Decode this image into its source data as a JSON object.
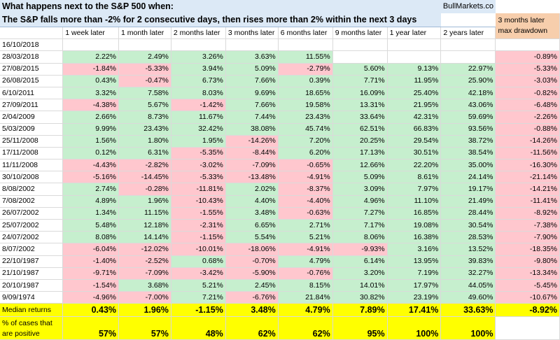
{
  "title_line1": "What happens next to the S&P 500 when:",
  "title_line2": "The S&P falls more than -2% for 2 consecutive days, then rises more than 2% within the next 3 days",
  "brand": "BullMarkets.co",
  "columns": [
    "1 week later",
    "1 month later",
    "2 months later",
    "3 months later",
    "6 months later",
    "9 months later",
    "1 year later",
    "2 years later"
  ],
  "drawdown_header_line1": "3 months later",
  "drawdown_header_line2": "max drawdown",
  "colors": {
    "positive": "#c6efce",
    "negative": "#ffc7ce",
    "highlight": "#ffff00",
    "title_bg": "#dce9f6",
    "drawdown_header_bg": "#f7ceac"
  },
  "rows": [
    {
      "date": "16/10/2018",
      "values": [
        "",
        "",
        "",
        "",
        "",
        "",
        "",
        ""
      ],
      "drawdown": ""
    },
    {
      "date": "28/03/2018",
      "values": [
        "2.22%",
        "2.49%",
        "3.26%",
        "3.63%",
        "11.55%",
        "",
        "",
        ""
      ],
      "drawdown": "-0.89%"
    },
    {
      "date": "27/08/2015",
      "values": [
        "-1.84%",
        "-5.33%",
        "3.94%",
        "5.09%",
        "-2.79%",
        "5.60%",
        "9.13%",
        "22.97%"
      ],
      "drawdown": "-5.33%"
    },
    {
      "date": "26/08/2015",
      "values": [
        "0.43%",
        "-0.47%",
        "6.73%",
        "7.66%",
        "0.39%",
        "7.71%",
        "11.95%",
        "25.90%"
      ],
      "drawdown": "-3.03%"
    },
    {
      "date": "6/10/2011",
      "values": [
        "3.32%",
        "7.58%",
        "8.03%",
        "9.69%",
        "18.65%",
        "16.09%",
        "25.40%",
        "42.18%"
      ],
      "drawdown": "-0.82%"
    },
    {
      "date": "27/09/2011",
      "values": [
        "-4.38%",
        "5.67%",
        "-1.42%",
        "7.66%",
        "19.58%",
        "13.31%",
        "21.95%",
        "43.06%"
      ],
      "drawdown": "-6.48%"
    },
    {
      "date": "2/04/2009",
      "values": [
        "2.66%",
        "8.73%",
        "11.67%",
        "7.44%",
        "23.43%",
        "33.64%",
        "42.31%",
        "59.69%"
      ],
      "drawdown": "-2.26%"
    },
    {
      "date": "5/03/2009",
      "values": [
        "9.99%",
        "23.43%",
        "32.42%",
        "38.08%",
        "45.74%",
        "62.51%",
        "66.83%",
        "93.56%"
      ],
      "drawdown": "-0.88%"
    },
    {
      "date": "25/11/2008",
      "values": [
        "1.56%",
        "1.80%",
        "1.95%",
        "-14.26%",
        "7.20%",
        "20.25%",
        "29.54%",
        "38.72%"
      ],
      "drawdown": "-14.26%"
    },
    {
      "date": "17/11/2008",
      "values": [
        "0.12%",
        "6.31%",
        "-5.35%",
        "-8.44%",
        "6.20%",
        "17.13%",
        "30.51%",
        "38.54%"
      ],
      "drawdown": "-11.56%"
    },
    {
      "date": "11/11/2008",
      "values": [
        "-4.43%",
        "-2.82%",
        "-3.02%",
        "-7.09%",
        "-0.65%",
        "12.66%",
        "22.20%",
        "35.00%"
      ],
      "drawdown": "-16.30%"
    },
    {
      "date": "30/10/2008",
      "values": [
        "-5.16%",
        "-14.45%",
        "-5.33%",
        "-13.48%",
        "-4.91%",
        "5.09%",
        "8.61%",
        "24.14%"
      ],
      "drawdown": "-21.14%"
    },
    {
      "date": "8/08/2002",
      "values": [
        "2.74%",
        "-0.28%",
        "-11.81%",
        "2.02%",
        "-8.37%",
        "3.09%",
        "7.97%",
        "19.17%"
      ],
      "drawdown": "-14.21%"
    },
    {
      "date": "7/08/2002",
      "values": [
        "4.89%",
        "1.96%",
        "-10.43%",
        "4.40%",
        "-4.40%",
        "4.96%",
        "11.10%",
        "21.49%"
      ],
      "drawdown": "-11.41%"
    },
    {
      "date": "26/07/2002",
      "values": [
        "1.34%",
        "11.15%",
        "-1.55%",
        "3.48%",
        "-0.63%",
        "7.27%",
        "16.85%",
        "28.44%"
      ],
      "drawdown": "-8.92%"
    },
    {
      "date": "25/07/2002",
      "values": [
        "5.48%",
        "12.18%",
        "-2.31%",
        "6.65%",
        "2.71%",
        "7.17%",
        "19.08%",
        "30.54%"
      ],
      "drawdown": "-7.38%"
    },
    {
      "date": "24/07/2002",
      "values": [
        "8.08%",
        "14.14%",
        "-1.15%",
        "5.54%",
        "5.21%",
        "8.06%",
        "16.38%",
        "28.53%"
      ],
      "drawdown": "-7.90%"
    },
    {
      "date": "8/07/2002",
      "values": [
        "-6.04%",
        "-12.02%",
        "-10.01%",
        "-18.06%",
        "-4.91%",
        "-9.93%",
        "3.16%",
        "13.52%"
      ],
      "drawdown": "-18.35%"
    },
    {
      "date": "22/10/1987",
      "values": [
        "-1.40%",
        "-2.52%",
        "0.68%",
        "-0.70%",
        "4.79%",
        "6.14%",
        "13.95%",
        "39.83%"
      ],
      "drawdown": "-9.80%"
    },
    {
      "date": "21/10/1987",
      "values": [
        "-9.71%",
        "-7.09%",
        "-3.42%",
        "-5.90%",
        "-0.76%",
        "3.20%",
        "7.19%",
        "32.27%"
      ],
      "drawdown": "-13.34%"
    },
    {
      "date": "20/10/1987",
      "values": [
        "-1.54%",
        "3.68%",
        "5.21%",
        "2.45%",
        "8.15%",
        "14.01%",
        "17.97%",
        "44.05%"
      ],
      "drawdown": "-5.45%"
    },
    {
      "date": "9/09/1974",
      "values": [
        "-4.96%",
        "-7.00%",
        "7.21%",
        "-6.76%",
        "21.84%",
        "30.82%",
        "23.19%",
        "49.60%"
      ],
      "drawdown": "-10.67%"
    }
  ],
  "median": {
    "label": "Median returns",
    "values": [
      "0.43%",
      "1.96%",
      "-1.15%",
      "3.48%",
      "4.79%",
      "7.89%",
      "17.41%",
      "33.63%"
    ],
    "drawdown": "-8.92%"
  },
  "positive_pct": {
    "label_line1": "% of cases that",
    "label_line2": "are positive",
    "values": [
      "57%",
      "57%",
      "48%",
      "62%",
      "62%",
      "95%",
      "100%",
      "100%"
    ]
  }
}
